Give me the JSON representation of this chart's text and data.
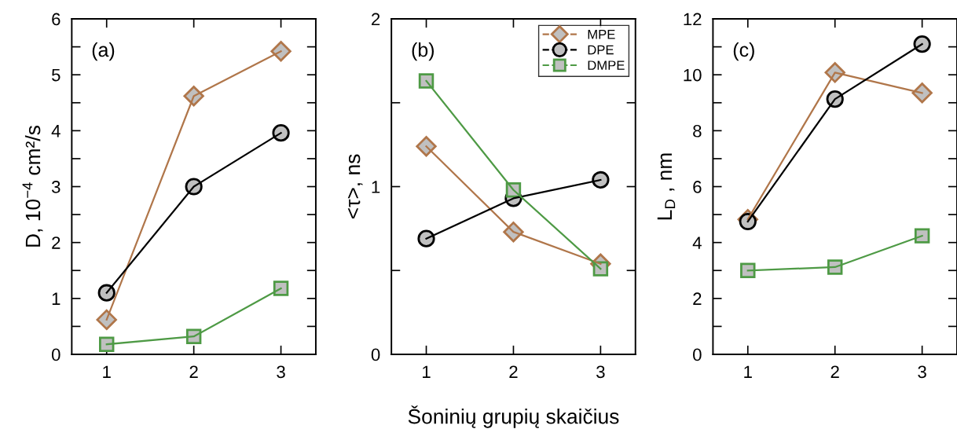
{
  "chart_data": [
    {
      "type": "line",
      "ylabel": "D, 10$^{−4}$ cm²/s",
      "annotations": [
        "(a)"
      ],
      "x": [
        1,
        2,
        3
      ],
      "xlim": [
        0.6,
        3.4
      ],
      "xticks": [
        1,
        2,
        3
      ],
      "ylim": [
        0,
        6
      ],
      "yticks": [
        0,
        {
          "value": 0.5,
          "label": null
        },
        1,
        {
          "value": 1.5,
          "label": null
        },
        2,
        {
          "value": 2.5,
          "label": null
        },
        3,
        {
          "value": 3.5,
          "label": null
        },
        4,
        {
          "value": 4.5,
          "label": null
        },
        5,
        {
          "value": 5.5,
          "label": null
        },
        6
      ],
      "grid": false,
      "legend": false,
      "series": [
        {
          "color": "#b0764a",
          "marker": "diamond",
          "values": [
            0.62,
            4.62,
            5.42
          ]
        },
        {
          "color": "#000000",
          "marker": "circle",
          "values": [
            1.1,
            3.0,
            3.96
          ]
        },
        {
          "color": "#4e9a45",
          "marker": "square",
          "values": [
            0.18,
            0.32,
            1.18
          ]
        }
      ]
    },
    {
      "type": "line",
      "ylabel": "<τ>, ns",
      "xlabel": "Šoninių grupių skaičius",
      "annotations": [
        "(b)"
      ],
      "x": [
        1,
        2,
        3
      ],
      "xlim": [
        0.6,
        3.4
      ],
      "xticks": [
        1,
        2,
        3
      ],
      "ylim": [
        0,
        2
      ],
      "yticks": [
        0,
        {
          "value": 0.5,
          "label": null
        },
        1,
        {
          "value": 1.5,
          "label": null
        },
        2
      ],
      "grid": false,
      "legend": "top right",
      "series": [
        {
          "name": "MPE",
          "color": "#b0764a",
          "marker": "diamond",
          "values": [
            1.24,
            0.73,
            0.54
          ]
        },
        {
          "name": "DPE",
          "color": "#000000",
          "marker": "circle",
          "values": [
            0.69,
            0.93,
            1.04
          ]
        },
        {
          "name": "DMPE",
          "color": "#4e9a45",
          "marker": "square",
          "values": [
            1.63,
            0.98,
            0.51
          ]
        }
      ]
    },
    {
      "type": "line",
      "ylabel": "L$_{D}$ , nm",
      "annotations": [
        "(c)"
      ],
      "x": [
        1,
        2,
        3
      ],
      "xlim": [
        0.6,
        3.4
      ],
      "xticks": [
        1,
        2,
        3
      ],
      "ylim": [
        0,
        12
      ],
      "yticks": [
        0,
        {
          "value": 1,
          "label": null
        },
        2,
        {
          "value": 3,
          "label": null
        },
        4,
        {
          "value": 5,
          "label": null
        },
        6,
        {
          "value": 7,
          "label": null
        },
        8,
        {
          "value": 9,
          "label": null
        },
        10,
        {
          "value": 11,
          "label": null
        },
        12
      ],
      "grid": false,
      "legend": false,
      "series": [
        {
          "color": "#b0764a",
          "marker": "diamond",
          "values": [
            4.83,
            10.08,
            9.35
          ]
        },
        {
          "color": "#000000",
          "marker": "circle",
          "values": [
            4.75,
            9.13,
            11.1
          ]
        },
        {
          "color": "#4e9a45",
          "marker": "square",
          "values": [
            3.0,
            3.12,
            4.24
          ]
        }
      ]
    }
  ]
}
